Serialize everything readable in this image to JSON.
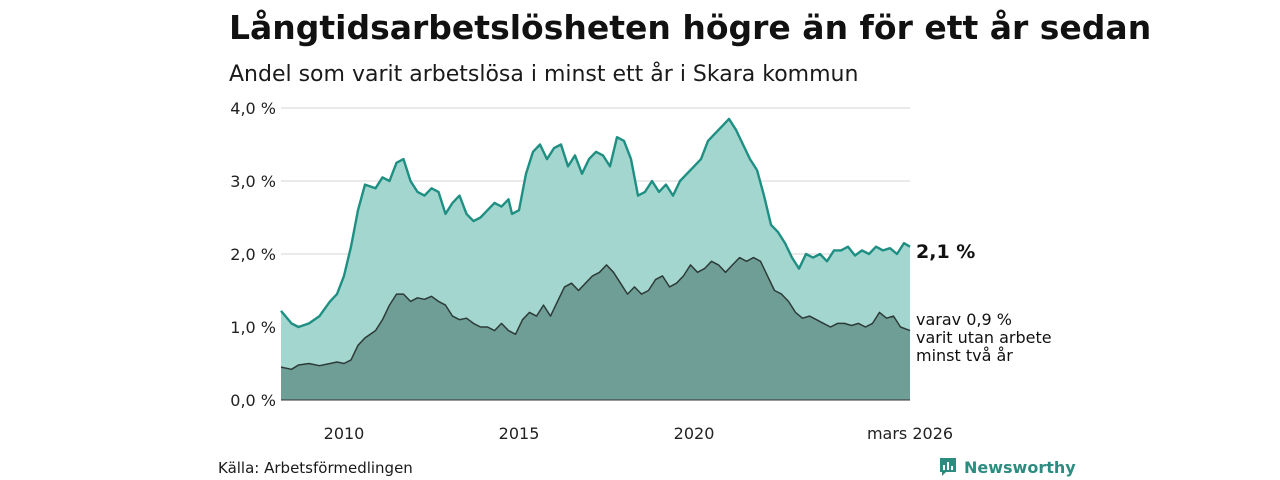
{
  "title": "Långtidsarbetslösheten högre än för ett år sedan",
  "subtitle": "Andel som varit arbetslösa i minst ett år i Skara kommun",
  "source": "Källa: Arbetsförmedlingen",
  "brand": "Newsworthy",
  "colors": {
    "upper_fill": "#a3d6cf",
    "upper_line": "#1e8f82",
    "lower_fill": "#6f9e96",
    "lower_line": "#2d3b38",
    "grid": "#dddddd"
  },
  "chart_data": {
    "type": "area",
    "title": "Långtidsarbetslösheten högre än för ett år sedan",
    "subtitle": "Andel som varit arbetslösa i minst ett år i Skara kommun",
    "xlim": [
      2008.2,
      2026.17
    ],
    "ylim": [
      0,
      4.0
    ],
    "yticks": [
      {
        "value": 0,
        "label": "0,0 %"
      },
      {
        "value": 1,
        "label": "1,0 %"
      },
      {
        "value": 2,
        "label": "2,0 %"
      },
      {
        "value": 3,
        "label": "3,0 %"
      },
      {
        "value": 4,
        "label": "4,0 %"
      }
    ],
    "xticks": [
      {
        "value": 2010,
        "label": "2010"
      },
      {
        "value": 2015,
        "label": "2015"
      },
      {
        "value": 2020,
        "label": "2020"
      },
      {
        "value": 2026.17,
        "label": "mars 2026"
      }
    ],
    "grid": true,
    "series": [
      {
        "name": "Arbetslösa minst ett år",
        "end_label": "2,1 %",
        "points": [
          [
            2008.2,
            1.22
          ],
          [
            2008.5,
            1.05
          ],
          [
            2008.7,
            1.0
          ],
          [
            2009.0,
            1.05
          ],
          [
            2009.3,
            1.15
          ],
          [
            2009.6,
            1.35
          ],
          [
            2009.8,
            1.45
          ],
          [
            2010.0,
            1.7
          ],
          [
            2010.2,
            2.1
          ],
          [
            2010.4,
            2.6
          ],
          [
            2010.6,
            2.95
          ],
          [
            2010.9,
            2.9
          ],
          [
            2011.1,
            3.05
          ],
          [
            2011.3,
            3.0
          ],
          [
            2011.5,
            3.25
          ],
          [
            2011.7,
            3.3
          ],
          [
            2011.9,
            3.0
          ],
          [
            2012.1,
            2.85
          ],
          [
            2012.3,
            2.8
          ],
          [
            2012.5,
            2.9
          ],
          [
            2012.7,
            2.85
          ],
          [
            2012.9,
            2.55
          ],
          [
            2013.1,
            2.7
          ],
          [
            2013.3,
            2.8
          ],
          [
            2013.5,
            2.55
          ],
          [
            2013.7,
            2.45
          ],
          [
            2013.9,
            2.5
          ],
          [
            2014.1,
            2.6
          ],
          [
            2014.3,
            2.7
          ],
          [
            2014.5,
            2.65
          ],
          [
            2014.7,
            2.75
          ],
          [
            2014.8,
            2.55
          ],
          [
            2015.0,
            2.6
          ],
          [
            2015.2,
            3.1
          ],
          [
            2015.4,
            3.4
          ],
          [
            2015.6,
            3.5
          ],
          [
            2015.8,
            3.3
          ],
          [
            2016.0,
            3.45
          ],
          [
            2016.2,
            3.5
          ],
          [
            2016.4,
            3.2
          ],
          [
            2016.6,
            3.35
          ],
          [
            2016.8,
            3.1
          ],
          [
            2017.0,
            3.3
          ],
          [
            2017.2,
            3.4
          ],
          [
            2017.4,
            3.35
          ],
          [
            2017.6,
            3.2
          ],
          [
            2017.8,
            3.6
          ],
          [
            2018.0,
            3.55
          ],
          [
            2018.2,
            3.3
          ],
          [
            2018.4,
            2.8
          ],
          [
            2018.6,
            2.85
          ],
          [
            2018.8,
            3.0
          ],
          [
            2019.0,
            2.85
          ],
          [
            2019.2,
            2.95
          ],
          [
            2019.4,
            2.8
          ],
          [
            2019.6,
            3.0
          ],
          [
            2019.8,
            3.1
          ],
          [
            2020.0,
            3.2
          ],
          [
            2020.2,
            3.3
          ],
          [
            2020.4,
            3.55
          ],
          [
            2020.6,
            3.65
          ],
          [
            2020.8,
            3.75
          ],
          [
            2021.0,
            3.85
          ],
          [
            2021.2,
            3.7
          ],
          [
            2021.4,
            3.5
          ],
          [
            2021.6,
            3.3
          ],
          [
            2021.8,
            3.15
          ],
          [
            2022.0,
            2.8
          ],
          [
            2022.2,
            2.4
          ],
          [
            2022.4,
            2.3
          ],
          [
            2022.6,
            2.15
          ],
          [
            2022.8,
            1.95
          ],
          [
            2023.0,
            1.8
          ],
          [
            2023.2,
            2.0
          ],
          [
            2023.4,
            1.95
          ],
          [
            2023.6,
            2.0
          ],
          [
            2023.8,
            1.9
          ],
          [
            2024.0,
            2.05
          ],
          [
            2024.2,
            2.05
          ],
          [
            2024.4,
            2.1
          ],
          [
            2024.6,
            1.98
          ],
          [
            2024.8,
            2.05
          ],
          [
            2025.0,
            2.0
          ],
          [
            2025.2,
            2.1
          ],
          [
            2025.4,
            2.05
          ],
          [
            2025.6,
            2.08
          ],
          [
            2025.8,
            2.0
          ],
          [
            2026.0,
            2.15
          ],
          [
            2026.17,
            2.1
          ]
        ]
      },
      {
        "name": "varav minst två år",
        "end_label_lines": [
          "varav 0,9 %",
          "varit utan arbete",
          "minst två år"
        ],
        "points": [
          [
            2008.2,
            0.45
          ],
          [
            2008.5,
            0.42
          ],
          [
            2008.7,
            0.48
          ],
          [
            2009.0,
            0.5
          ],
          [
            2009.3,
            0.47
          ],
          [
            2009.6,
            0.5
          ],
          [
            2009.8,
            0.52
          ],
          [
            2010.0,
            0.5
          ],
          [
            2010.2,
            0.55
          ],
          [
            2010.4,
            0.75
          ],
          [
            2010.6,
            0.85
          ],
          [
            2010.9,
            0.95
          ],
          [
            2011.1,
            1.1
          ],
          [
            2011.3,
            1.3
          ],
          [
            2011.5,
            1.45
          ],
          [
            2011.7,
            1.45
          ],
          [
            2011.9,
            1.35
          ],
          [
            2012.1,
            1.4
          ],
          [
            2012.3,
            1.38
          ],
          [
            2012.5,
            1.42
          ],
          [
            2012.7,
            1.35
          ],
          [
            2012.9,
            1.3
          ],
          [
            2013.1,
            1.15
          ],
          [
            2013.3,
            1.1
          ],
          [
            2013.5,
            1.12
          ],
          [
            2013.7,
            1.05
          ],
          [
            2013.9,
            1.0
          ],
          [
            2014.1,
            1.0
          ],
          [
            2014.3,
            0.95
          ],
          [
            2014.5,
            1.05
          ],
          [
            2014.7,
            0.95
          ],
          [
            2014.9,
            0.9
          ],
          [
            2015.1,
            1.1
          ],
          [
            2015.3,
            1.2
          ],
          [
            2015.5,
            1.15
          ],
          [
            2015.7,
            1.3
          ],
          [
            2015.9,
            1.15
          ],
          [
            2016.1,
            1.35
          ],
          [
            2016.3,
            1.55
          ],
          [
            2016.5,
            1.6
          ],
          [
            2016.7,
            1.5
          ],
          [
            2016.9,
            1.6
          ],
          [
            2017.1,
            1.7
          ],
          [
            2017.3,
            1.75
          ],
          [
            2017.5,
            1.85
          ],
          [
            2017.7,
            1.75
          ],
          [
            2017.9,
            1.6
          ],
          [
            2018.1,
            1.45
          ],
          [
            2018.3,
            1.55
          ],
          [
            2018.5,
            1.45
          ],
          [
            2018.7,
            1.5
          ],
          [
            2018.9,
            1.65
          ],
          [
            2019.1,
            1.7
          ],
          [
            2019.3,
            1.55
          ],
          [
            2019.5,
            1.6
          ],
          [
            2019.7,
            1.7
          ],
          [
            2019.9,
            1.85
          ],
          [
            2020.1,
            1.75
          ],
          [
            2020.3,
            1.8
          ],
          [
            2020.5,
            1.9
          ],
          [
            2020.7,
            1.85
          ],
          [
            2020.9,
            1.75
          ],
          [
            2021.1,
            1.85
          ],
          [
            2021.3,
            1.95
          ],
          [
            2021.5,
            1.9
          ],
          [
            2021.7,
            1.95
          ],
          [
            2021.9,
            1.9
          ],
          [
            2022.1,
            1.7
          ],
          [
            2022.3,
            1.5
          ],
          [
            2022.5,
            1.45
          ],
          [
            2022.7,
            1.35
          ],
          [
            2022.9,
            1.2
          ],
          [
            2023.1,
            1.12
          ],
          [
            2023.3,
            1.15
          ],
          [
            2023.5,
            1.1
          ],
          [
            2023.7,
            1.05
          ],
          [
            2023.9,
            1.0
          ],
          [
            2024.1,
            1.05
          ],
          [
            2024.3,
            1.05
          ],
          [
            2024.5,
            1.02
          ],
          [
            2024.7,
            1.05
          ],
          [
            2024.9,
            1.0
          ],
          [
            2025.1,
            1.05
          ],
          [
            2025.3,
            1.2
          ],
          [
            2025.5,
            1.12
          ],
          [
            2025.7,
            1.15
          ],
          [
            2025.9,
            1.0
          ],
          [
            2026.17,
            0.95
          ]
        ]
      }
    ]
  }
}
